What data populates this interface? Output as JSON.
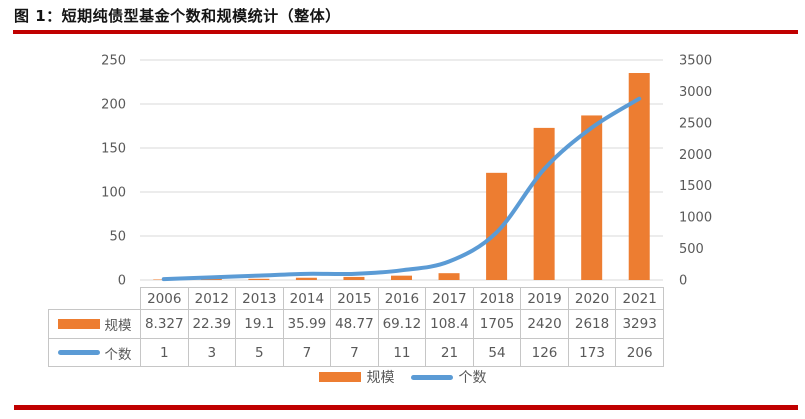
{
  "title": "图 1：短期纯债型基金个数和规模统计（整体）",
  "colors": {
    "accent_red": "#c00000",
    "bar_orange": "#ed7d31",
    "line_blue": "#5b9bd5",
    "gridline": "#d9d9d9",
    "axis_text": "#595959",
    "table_border": "#c6c6c6"
  },
  "chart_data": {
    "type": "combo-bar-line",
    "categories": [
      "2006",
      "2012",
      "2013",
      "2014",
      "2015",
      "2016",
      "2017",
      "2018",
      "2019",
      "2020",
      "2021"
    ],
    "series": [
      {
        "name": "规模",
        "type": "bar",
        "axis": "right",
        "color": "#ed7d31",
        "values": [
          8.327,
          22.39,
          19.1,
          35.99,
          48.77,
          69.12,
          108.4,
          1705,
          2420,
          2618,
          3293
        ],
        "display": [
          "8.327",
          "22.39",
          "19.1",
          "35.99",
          "48.77",
          "69.12",
          "108.4",
          "1705",
          "2420",
          "2618",
          "3293"
        ]
      },
      {
        "name": "个数",
        "type": "line",
        "axis": "left",
        "color": "#5b9bd5",
        "values": [
          1,
          3,
          5,
          7,
          7,
          11,
          21,
          54,
          126,
          173,
          206
        ],
        "display": [
          "1",
          "3",
          "5",
          "7",
          "7",
          "11",
          "21",
          "54",
          "126",
          "173",
          "206"
        ]
      }
    ],
    "left_axis": {
      "min": 0,
      "max": 250,
      "step": 50,
      "ticks": [
        0,
        50,
        100,
        150,
        200,
        250
      ]
    },
    "right_axis": {
      "min": 0,
      "max": 3500,
      "step": 500,
      "ticks": [
        0,
        500,
        1000,
        1500,
        2000,
        2500,
        3000,
        3500
      ]
    },
    "grid": true,
    "legend_position": "bottom",
    "data_table_shown": true
  }
}
